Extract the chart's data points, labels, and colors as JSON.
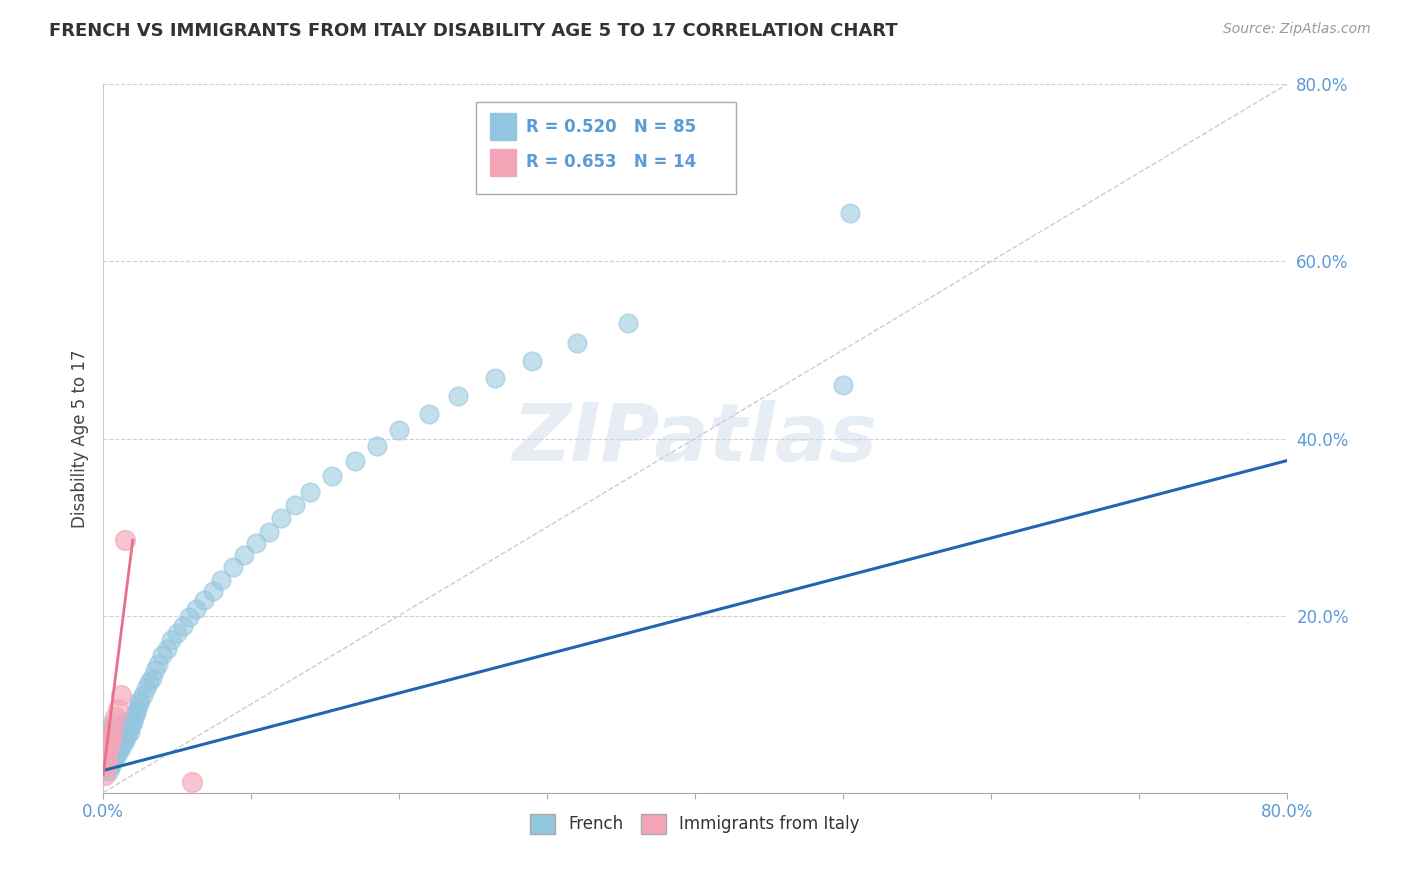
{
  "title": "FRENCH VS IMMIGRANTS FROM ITALY DISABILITY AGE 5 TO 17 CORRELATION CHART",
  "source": "Source: ZipAtlas.com",
  "ylabel": "Disability Age 5 to 17",
  "legend1_r": "R = 0.520",
  "legend1_n": "N = 85",
  "legend2_r": "R = 0.653",
  "legend2_n": "N = 14",
  "french_color": "#92c5de",
  "italy_color": "#f4a6b8",
  "french_line_color": "#2166ac",
  "italy_line_color": "#e8708a",
  "diag_color": "#cccccc",
  "xlim": [
    0.0,
    0.8
  ],
  "ylim": [
    0.0,
    0.8
  ],
  "french_x": [
    0.001,
    0.001,
    0.001,
    0.002,
    0.002,
    0.002,
    0.002,
    0.003,
    0.003,
    0.003,
    0.003,
    0.004,
    0.004,
    0.004,
    0.004,
    0.005,
    0.005,
    0.005,
    0.006,
    0.006,
    0.006,
    0.007,
    0.007,
    0.007,
    0.008,
    0.008,
    0.008,
    0.009,
    0.009,
    0.01,
    0.01,
    0.011,
    0.011,
    0.012,
    0.012,
    0.013,
    0.013,
    0.014,
    0.015,
    0.015,
    0.016,
    0.017,
    0.018,
    0.019,
    0.02,
    0.021,
    0.022,
    0.023,
    0.024,
    0.025,
    0.027,
    0.029,
    0.031,
    0.033,
    0.035,
    0.037,
    0.04,
    0.043,
    0.046,
    0.05,
    0.054,
    0.058,
    0.063,
    0.068,
    0.074,
    0.08,
    0.088,
    0.095,
    0.103,
    0.112,
    0.12,
    0.13,
    0.14,
    0.155,
    0.17,
    0.185,
    0.2,
    0.22,
    0.24,
    0.265,
    0.29,
    0.32,
    0.355,
    0.5,
    0.505
  ],
  "french_y": [
    0.03,
    0.045,
    0.06,
    0.025,
    0.04,
    0.055,
    0.07,
    0.03,
    0.045,
    0.06,
    0.075,
    0.025,
    0.04,
    0.055,
    0.07,
    0.03,
    0.05,
    0.065,
    0.035,
    0.05,
    0.068,
    0.04,
    0.055,
    0.072,
    0.038,
    0.055,
    0.073,
    0.042,
    0.06,
    0.045,
    0.065,
    0.05,
    0.07,
    0.05,
    0.072,
    0.055,
    0.075,
    0.06,
    0.058,
    0.08,
    0.065,
    0.07,
    0.068,
    0.075,
    0.08,
    0.085,
    0.09,
    0.095,
    0.1,
    0.105,
    0.11,
    0.118,
    0.125,
    0.13,
    0.138,
    0.145,
    0.155,
    0.162,
    0.172,
    0.18,
    0.188,
    0.198,
    0.208,
    0.218,
    0.228,
    0.24,
    0.255,
    0.268,
    0.282,
    0.295,
    0.31,
    0.325,
    0.34,
    0.358,
    0.375,
    0.392,
    0.41,
    0.428,
    0.448,
    0.468,
    0.488,
    0.508,
    0.53,
    0.46,
    0.655
  ],
  "italy_x": [
    0.001,
    0.002,
    0.002,
    0.003,
    0.003,
    0.004,
    0.005,
    0.006,
    0.007,
    0.008,
    0.01,
    0.012,
    0.015,
    0.06
  ],
  "italy_y": [
    0.02,
    0.03,
    0.045,
    0.035,
    0.055,
    0.05,
    0.06,
    0.065,
    0.075,
    0.085,
    0.095,
    0.11,
    0.285,
    0.012
  ],
  "fr_line_x": [
    0.0,
    0.8
  ],
  "fr_line_y": [
    0.025,
    0.375
  ],
  "it_line_x": [
    0.0,
    0.02
  ],
  "it_line_y": [
    0.02,
    0.285
  ],
  "watermark_text": "ZIPatlas",
  "ytick_values": [
    0.0,
    0.2,
    0.4,
    0.6,
    0.8
  ],
  "ytick_labels": [
    "0.0%",
    "20.0%",
    "40.0%",
    "60.0%",
    "80.0%"
  ],
  "xtick_left_label": "0.0%",
  "xtick_right_label": "80.0%"
}
